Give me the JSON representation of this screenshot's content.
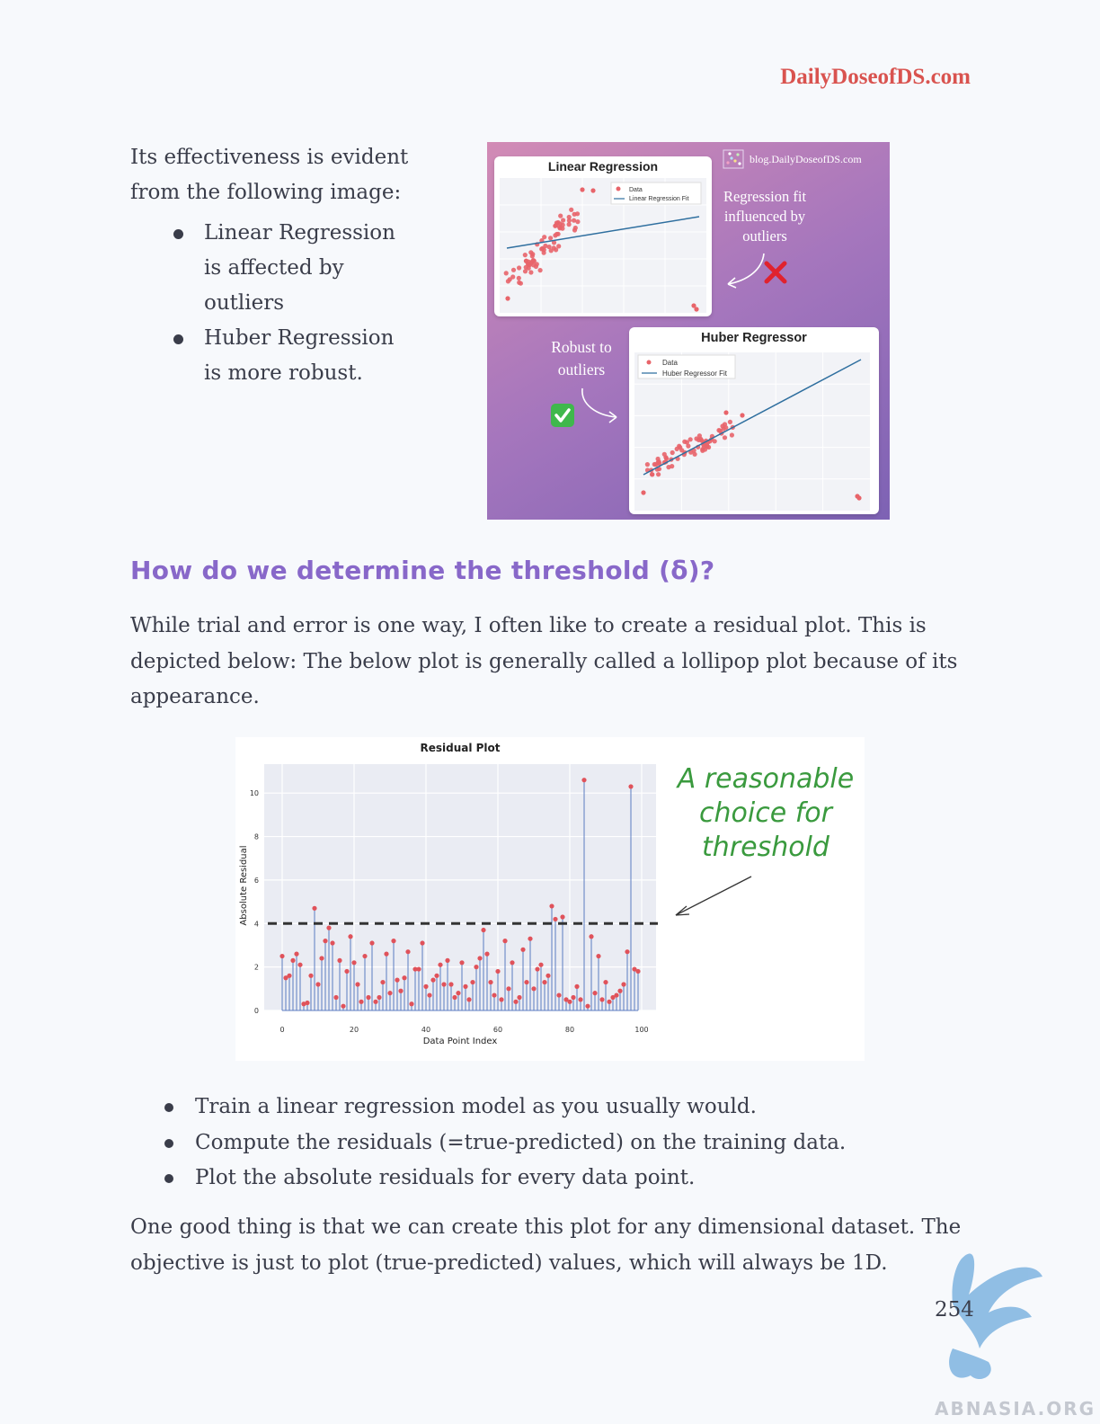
{
  "header": {
    "brand": "DailyDoseofDS.com"
  },
  "intro": {
    "text": "Its effectiveness is evident from the following image:",
    "bullets": [
      "Linear Regression is affected by outliers",
      "Huber Regression is more robust."
    ]
  },
  "figure1": {
    "watermark": "blog.DailyDoseofDS.com",
    "top_panel": {
      "title": "Linear Regression",
      "legend": [
        "Data",
        "Linear Regression Fit"
      ]
    },
    "bottom_panel": {
      "title": "Huber Regressor",
      "legend": [
        "Data",
        "Huber Regressor Fit"
      ]
    },
    "note_top": [
      "Regression fit",
      "influenced by",
      "outliers"
    ],
    "note_bottom": [
      "Robust to",
      "outliers"
    ],
    "colors": {
      "points": "#e8646a",
      "fit_line": "#2f6f9f",
      "cross": "#e0222e",
      "check": "#3fb84c"
    }
  },
  "section": {
    "heading": "How do we determine the threshold (δ)?"
  },
  "para1": "While trial and error is one way, I often like to create a residual plot. This is depicted below: The below plot is generally called a lollipop plot because of its appearance.",
  "chart_data": {
    "type": "lollipop",
    "title": "Residual Plot",
    "xlabel": "Data Point Index",
    "ylabel": "Absolute Residual",
    "xlim": [
      0,
      100
    ],
    "ylim": [
      0,
      11
    ],
    "xticks": [
      0,
      20,
      40,
      60,
      80,
      100
    ],
    "yticks": [
      0,
      2,
      4,
      6,
      8,
      10
    ],
    "threshold": 4,
    "annotation": [
      "A reasonable",
      "choice for",
      "threshold"
    ],
    "x": [
      0,
      1,
      2,
      3,
      4,
      5,
      6,
      7,
      8,
      9,
      10,
      11,
      12,
      13,
      14,
      15,
      16,
      17,
      18,
      19,
      20,
      21,
      22,
      23,
      24,
      25,
      26,
      27,
      28,
      29,
      30,
      31,
      32,
      33,
      34,
      35,
      36,
      37,
      38,
      39,
      40,
      41,
      42,
      43,
      44,
      45,
      46,
      47,
      48,
      49,
      50,
      51,
      52,
      53,
      54,
      55,
      56,
      57,
      58,
      59,
      60,
      61,
      62,
      63,
      64,
      65,
      66,
      67,
      68,
      69,
      70,
      71,
      72,
      73,
      74,
      75,
      76,
      77,
      78,
      79,
      80,
      81,
      82,
      83,
      84,
      85,
      86,
      87,
      88,
      89,
      90,
      91,
      92,
      93,
      94,
      95,
      96,
      97,
      98,
      99
    ],
    "values": [
      2.5,
      1.5,
      1.6,
      2.3,
      2.6,
      2.1,
      0.3,
      0.35,
      1.6,
      4.7,
      1.2,
      2.4,
      3.2,
      3.8,
      3.1,
      0.6,
      2.3,
      0.2,
      1.8,
      3.4,
      2.2,
      1.2,
      0.4,
      2.5,
      0.6,
      3.1,
      0.4,
      0.6,
      1.3,
      2.6,
      0.8,
      3.2,
      1.4,
      0.9,
      1.5,
      2.7,
      0.3,
      1.9,
      1.9,
      3.1,
      1.1,
      0.7,
      1.4,
      1.6,
      2.1,
      1.2,
      2.3,
      1.2,
      0.6,
      0.8,
      2.2,
      1.1,
      0.5,
      1.3,
      2.0,
      2.4,
      3.7,
      2.6,
      1.3,
      0.7,
      1.8,
      0.5,
      3.2,
      1.0,
      2.2,
      0.4,
      0.6,
      2.8,
      1.3,
      3.3,
      1.0,
      1.9,
      2.1,
      1.3,
      1.6,
      4.8,
      4.2,
      0.7,
      4.3,
      0.5,
      0.4,
      0.6,
      1.1,
      0.5,
      10.6,
      0.2,
      3.4,
      0.8,
      2.5,
      0.5,
      1.3,
      0.4,
      0.6,
      0.7,
      0.9,
      1.2,
      2.7,
      10.3,
      1.9,
      1.8
    ],
    "colors": {
      "stem": "#5b7bc0",
      "marker": "#e0525a",
      "threshold_line": "#333333",
      "background": "#eaecf3",
      "annotation": "#3a9a3e"
    }
  },
  "steps": [
    "Train a linear regression model as you usually would.",
    "Compute the residuals (=true-predicted) on the training data.",
    "Plot the absolute residuals for every data point."
  ],
  "para2": "One good thing is that we can create this plot for any dimensional dataset. The objective is just to plot (true-predicted) values, which will always be 1D.",
  "footer": {
    "page_number": "254",
    "watermark_text": "ABNASIA.ORG"
  }
}
